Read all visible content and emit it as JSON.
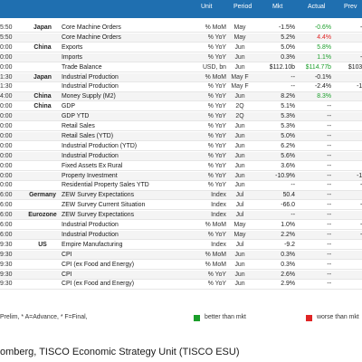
{
  "header": {
    "unit": "Unit",
    "period": "Period",
    "mkt": "Mkt",
    "actual": "Actual",
    "prev": "Prev"
  },
  "rows": [
    {
      "time": "5:50",
      "country": "Japan",
      "event": "Core Machine Orders",
      "unit": "% MoM",
      "period": "May",
      "mkt": "-1.5%",
      "actual": "-0.6%",
      "actual_color": "green",
      "prev": "-9."
    },
    {
      "time": "5:50",
      "country": "",
      "event": "Core Machine Orders",
      "unit": "% YoY",
      "period": "May",
      "mkt": "5.2%",
      "actual": "4.4%",
      "actual_color": "red",
      "prev": "6."
    },
    {
      "time": "0:00",
      "country": "China",
      "event": "Exports",
      "unit": "% YoY",
      "period": "Jun",
      "mkt": "5.0%",
      "actual": "5.8%",
      "actual_color": "green",
      "prev": "4."
    },
    {
      "time": "0:00",
      "country": "",
      "event": "Imports",
      "unit": "% YoY",
      "period": "Jun",
      "mkt": "0.3%",
      "actual": "1.1%",
      "actual_color": "green",
      "prev": "-3."
    },
    {
      "time": "0:00",
      "country": "",
      "event": "Trade Balance",
      "unit": "USD, bn",
      "period": "Jun",
      "mkt": "$112.10b",
      "actual": "$114.77b",
      "actual_color": "green",
      "prev": "$103.2"
    },
    {
      "time": "1:30",
      "country": "Japan",
      "event": "Industrial Production",
      "unit": "% MoM",
      "period": "May F",
      "mkt": "--",
      "actual": "-0.1%",
      "actual_color": "",
      "prev": "0."
    },
    {
      "time": "1:30",
      "country": "",
      "event": "Industrial Production",
      "unit": "% YoY",
      "period": "May F",
      "mkt": "--",
      "actual": "-2.4%",
      "actual_color": "",
      "prev": "-1.8"
    },
    {
      "time": "4:00",
      "country": "China",
      "event": "Money Supply (M2)",
      "unit": "% YoY",
      "period": "Jun",
      "mkt": "8.2%",
      "actual": "8.3%",
      "actual_color": "green",
      "prev": "7."
    },
    {
      "time": "0:00",
      "country": "China",
      "event": "GDP",
      "unit": "% YoY",
      "period": "2Q",
      "mkt": "5.1%",
      "actual": "--",
      "actual_color": "",
      "prev": "5."
    },
    {
      "time": "0:00",
      "country": "",
      "event": "GDP YTD",
      "unit": "% YoY",
      "period": "2Q",
      "mkt": "5.3%",
      "actual": "--",
      "actual_color": "",
      "prev": "5."
    },
    {
      "time": "0:00",
      "country": "",
      "event": "Retail Sales",
      "unit": "% YoY",
      "period": "Jun",
      "mkt": "5.3%",
      "actual": "--",
      "actual_color": "",
      "prev": "6."
    },
    {
      "time": "0:00",
      "country": "",
      "event": "Retail Sales (YTD)",
      "unit": "% YoY",
      "period": "Jun",
      "mkt": "5.0%",
      "actual": "--",
      "actual_color": "",
      "prev": "5."
    },
    {
      "time": "0:00",
      "country": "",
      "event": "Industrial Production (YTD)",
      "unit": "% YoY",
      "period": "Jun",
      "mkt": "6.2%",
      "actual": "--",
      "actual_color": "",
      "prev": "6."
    },
    {
      "time": "0:00",
      "country": "",
      "event": "Industrial Production",
      "unit": "% YoY",
      "period": "Jun",
      "mkt": "5.6%",
      "actual": "--",
      "actual_color": "",
      "prev": "5."
    },
    {
      "time": "0:00",
      "country": "",
      "event": "Fixed Assets Ex Rural",
      "unit": "% YoY",
      "period": "Jun",
      "mkt": "3.6%",
      "actual": "--",
      "actual_color": "",
      "prev": "3."
    },
    {
      "time": "0:00",
      "country": "",
      "event": "Property Investment",
      "unit": "% YoY",
      "period": "Jun",
      "mkt": "-10.9%",
      "actual": "--",
      "actual_color": "",
      "prev": "-10."
    },
    {
      "time": "0:00",
      "country": "",
      "event": "Residential Property Sales YTD",
      "unit": "% YoY",
      "period": "Jun",
      "mkt": "--",
      "actual": "--",
      "actual_color": "",
      "prev": "-2."
    },
    {
      "time": "6:00",
      "country": "Germany",
      "event": "ZEW Survey Expectations",
      "unit": "Index",
      "period": "Jul",
      "mkt": "50.4",
      "actual": "--",
      "actual_color": "",
      "prev": "4"
    },
    {
      "time": "6:00",
      "country": "",
      "event": "ZEW Survey Current Situation",
      "unit": "Index",
      "period": "Jul",
      "mkt": "-66.0",
      "actual": "--",
      "actual_color": "",
      "prev": "-7."
    },
    {
      "time": "6:00",
      "country": "Eurozone",
      "event": "ZEW Survey Expectations",
      "unit": "Index",
      "period": "Jul",
      "mkt": "--",
      "actual": "--",
      "actual_color": "",
      "prev": "3"
    },
    {
      "time": "6:00",
      "country": "",
      "event": "Industrial Production",
      "unit": "% MoM",
      "period": "May",
      "mkt": "1.0%",
      "actual": "--",
      "actual_color": "",
      "prev": "-2."
    },
    {
      "time": "6:00",
      "country": "",
      "event": "Industrial Production",
      "unit": "% YoY",
      "period": "May",
      "mkt": "2.2%",
      "actual": "--",
      "actual_color": "",
      "prev": "-3."
    },
    {
      "time": "9:30",
      "country": "US",
      "event": "Empire Manufacturing",
      "unit": "Index",
      "period": "Jul",
      "mkt": "-9.2",
      "actual": "--",
      "actual_color": "",
      "prev": "-1"
    },
    {
      "time": "9:30",
      "country": "",
      "event": "CPI",
      "unit": "% MoM",
      "period": "Jun",
      "mkt": "0.3%",
      "actual": "--",
      "actual_color": "",
      "prev": "0."
    },
    {
      "time": "9:30",
      "country": "",
      "event": "CPI (ex Food and Energy)",
      "unit": "% MoM",
      "period": "Jun",
      "mkt": "0.3%",
      "actual": "--",
      "actual_color": "",
      "prev": "0."
    },
    {
      "time": "9:30",
      "country": "",
      "event": "CPI",
      "unit": "% YoY",
      "period": "Jun",
      "mkt": "2.6%",
      "actual": "--",
      "actual_color": "",
      "prev": "2."
    },
    {
      "time": "9:30",
      "country": "",
      "event": "CPI (ex Food and Energy)",
      "unit": "% YoY",
      "period": "Jun",
      "mkt": "2.9%",
      "actual": "--",
      "actual_color": "",
      "prev": "2."
    }
  ],
  "footnote": "Prelim, * A=Advance, * F=Final,",
  "legend": {
    "better": "better than mkt",
    "worse": "worse than mkt",
    "better_color": "#1a9e2a",
    "worse_color": "#e02424"
  },
  "source": "omberg, TISCO Economic Strategy Unit (TISCO ESU)"
}
